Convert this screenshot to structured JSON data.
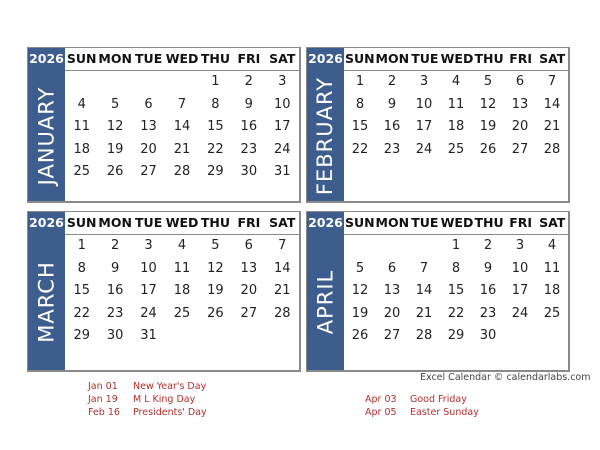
{
  "year": "2026",
  "weekdays": [
    "SUN",
    "MON",
    "TUE",
    "WED",
    "THU",
    "FRI",
    "SAT"
  ],
  "months": [
    {
      "name": "JANUARY",
      "weeks": [
        [
          "",
          "",
          "",
          "",
          "1",
          "2",
          "3"
        ],
        [
          "4",
          "5",
          "6",
          "7",
          "8",
          "9",
          "10"
        ],
        [
          "11",
          "12",
          "13",
          "14",
          "15",
          "16",
          "17"
        ],
        [
          "18",
          "19",
          "20",
          "21",
          "22",
          "23",
          "24"
        ],
        [
          "25",
          "26",
          "27",
          "28",
          "29",
          "30",
          "31"
        ]
      ]
    },
    {
      "name": "FEBRUARY",
      "weeks": [
        [
          "1",
          "2",
          "3",
          "4",
          "5",
          "6",
          "7"
        ],
        [
          "8",
          "9",
          "10",
          "11",
          "12",
          "13",
          "14"
        ],
        [
          "15",
          "16",
          "17",
          "18",
          "19",
          "20",
          "21"
        ],
        [
          "22",
          "23",
          "24",
          "25",
          "26",
          "27",
          "28"
        ]
      ]
    },
    {
      "name": "MARCH",
      "weeks": [
        [
          "1",
          "2",
          "3",
          "4",
          "5",
          "6",
          "7"
        ],
        [
          "8",
          "9",
          "10",
          "11",
          "12",
          "13",
          "14"
        ],
        [
          "15",
          "16",
          "17",
          "18",
          "19",
          "20",
          "21"
        ],
        [
          "22",
          "23",
          "24",
          "25",
          "26",
          "27",
          "28"
        ],
        [
          "29",
          "30",
          "31",
          "",
          "",
          "",
          ""
        ]
      ]
    },
    {
      "name": "APRIL",
      "weeks": [
        [
          "",
          "",
          "",
          "1",
          "2",
          "3",
          "4"
        ],
        [
          "5",
          "6",
          "7",
          "8",
          "9",
          "10",
          "11"
        ],
        [
          "12",
          "13",
          "14",
          "15",
          "16",
          "17",
          "18"
        ],
        [
          "19",
          "20",
          "21",
          "22",
          "23",
          "24",
          "25"
        ],
        [
          "26",
          "27",
          "28",
          "29",
          "30",
          "",
          ""
        ]
      ]
    }
  ],
  "credit": "Excel Calendar  © calendarlabs.com",
  "holidays_left": [
    {
      "date": "Jan 01",
      "name": "New Year's Day"
    },
    {
      "date": "Jan 19",
      "name": "M L King Day"
    },
    {
      "date": "Feb 16",
      "name": "Presidents' Day"
    }
  ],
  "holidays_right": [
    {
      "date": "Apr 03",
      "name": "Good Friday"
    },
    {
      "date": "Apr 05",
      "name": "Easter Sunday"
    }
  ],
  "colors": {
    "sidebar": "#3d5d8e",
    "holiday_text": "#b03030"
  }
}
